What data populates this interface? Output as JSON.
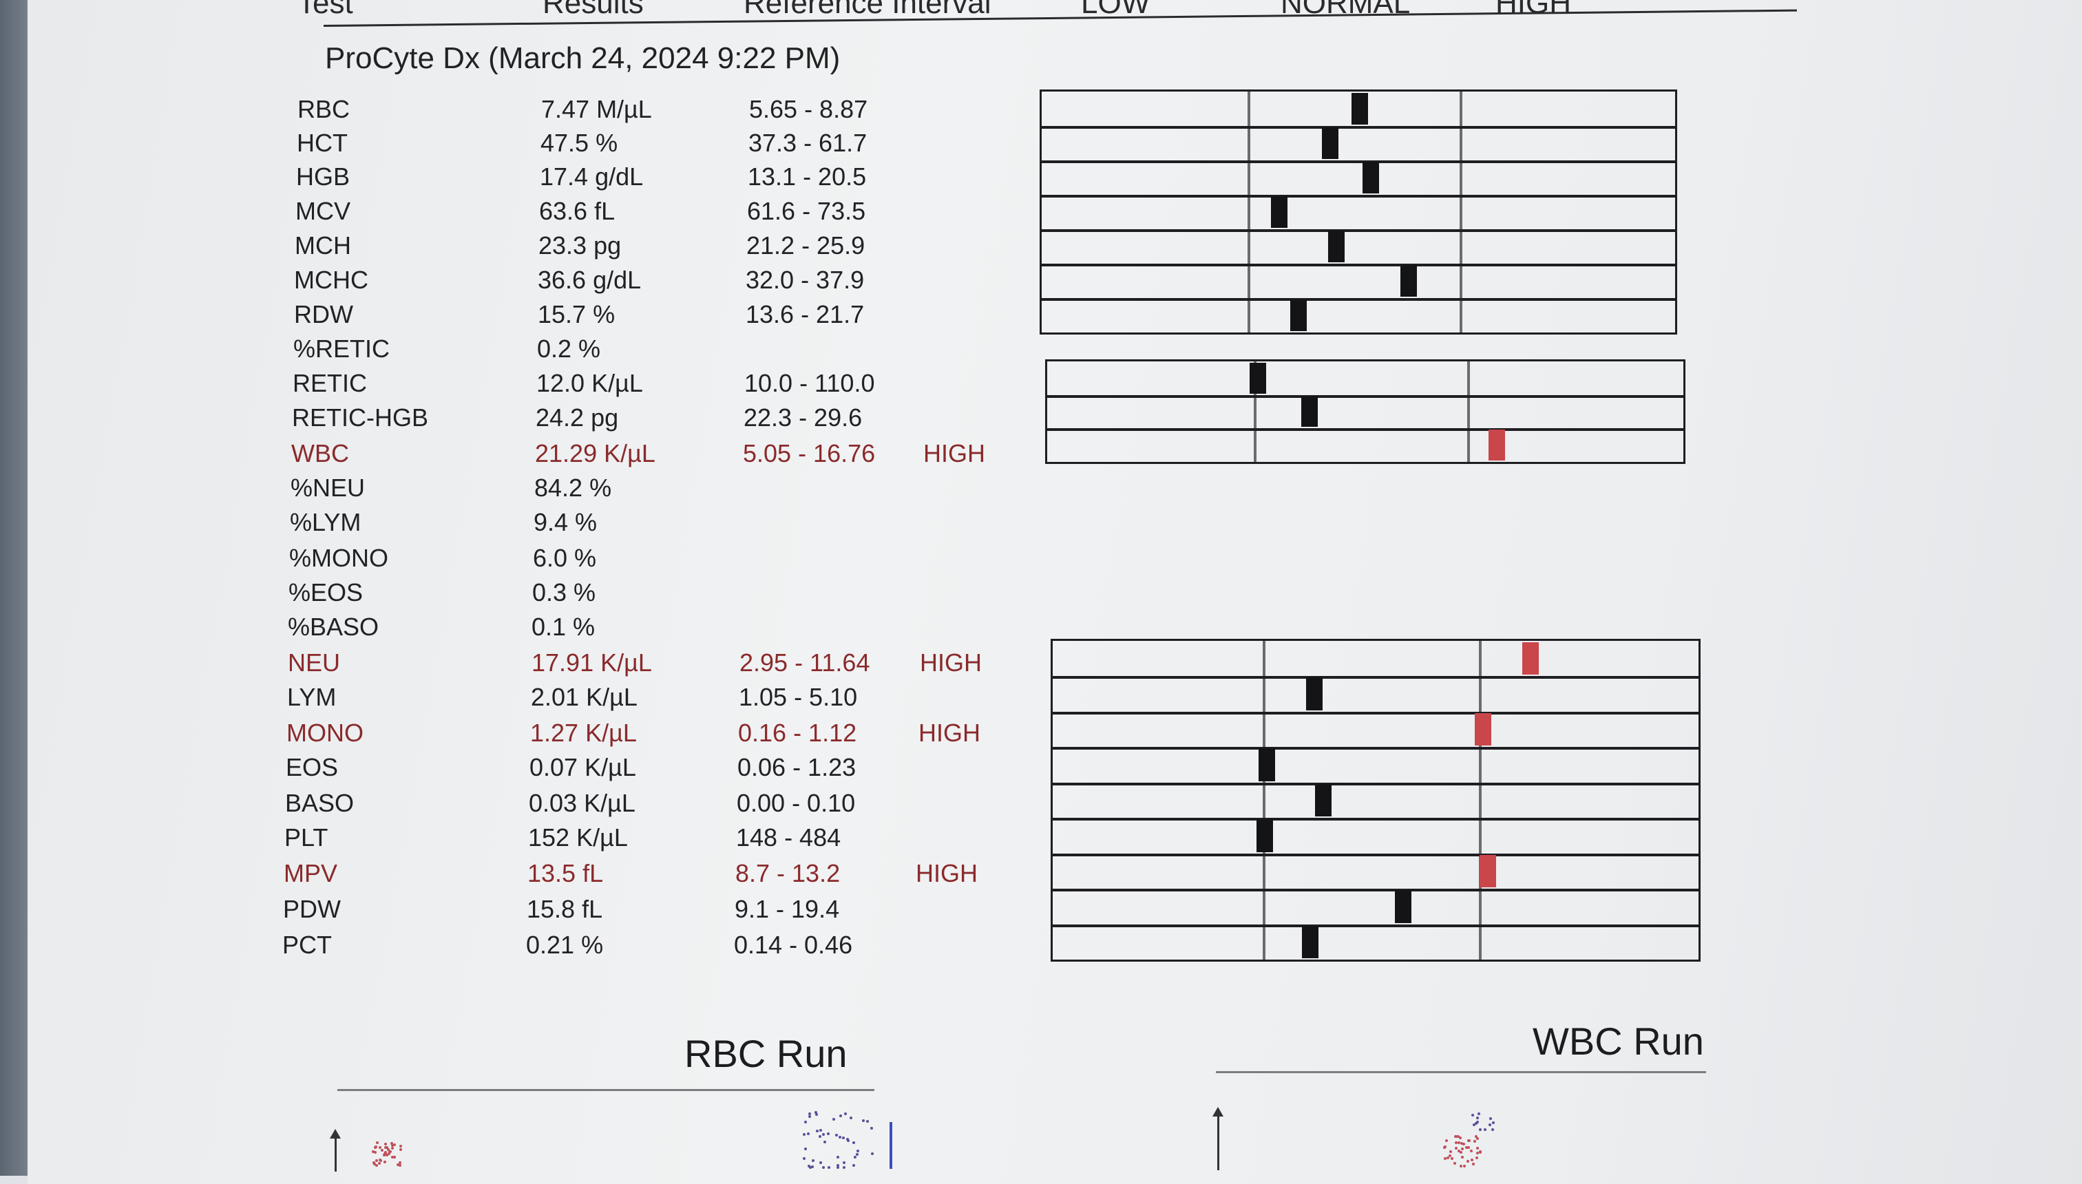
{
  "header": {
    "test": "Test",
    "results": "Results",
    "reference": "Reference Interval",
    "low": "LOW",
    "normal": "NORMAL",
    "high": "HIGH"
  },
  "report_title": "ProCyte Dx (March 24, 2024 9:22 PM)",
  "rows": [
    {
      "test": "RBC",
      "result": "7.47 M/µL",
      "ref": "5.65 - 8.87",
      "flag": "",
      "level": 0.53
    },
    {
      "test": "HCT",
      "result": "47.5 %",
      "ref": "37.3 - 61.7",
      "flag": "",
      "level": 0.39
    },
    {
      "test": "HGB",
      "result": "17.4 g/dL",
      "ref": "13.1 - 20.5",
      "flag": "",
      "level": 0.58
    },
    {
      "test": "MCV",
      "result": "63.6 fL",
      "ref": "61.6 - 73.5",
      "flag": "",
      "level": 0.15
    },
    {
      "test": "MCH",
      "result": "23.3 pg",
      "ref": "21.2 - 25.9",
      "flag": "",
      "level": 0.42
    },
    {
      "test": "MCHC",
      "result": "36.6 g/dL",
      "ref": "32.0 - 37.9",
      "flag": "",
      "level": 0.76
    },
    {
      "test": "RDW",
      "result": "15.7 %",
      "ref": "13.6 - 21.7",
      "flag": "",
      "level": 0.24
    },
    {
      "test": "%RETIC",
      "result": "0.2 %",
      "ref": "",
      "flag": ""
    },
    {
      "test": "RETIC",
      "result": "12.0 K/µL",
      "ref": "10.0 - 110.0",
      "flag": "",
      "level": 0.02
    },
    {
      "test": "RETIC-HGB",
      "result": "24.2 pg",
      "ref": "22.3 - 29.6",
      "flag": "",
      "level": 0.26
    },
    {
      "test": "WBC",
      "result": "21.29 K/µL",
      "ref": "5.05 - 16.76",
      "flag": "HIGH",
      "level": 1.14
    },
    {
      "test": "%NEU",
      "result": "84.2 %",
      "ref": "",
      "flag": ""
    },
    {
      "test": "%LYM",
      "result": "9.4 %",
      "ref": "",
      "flag": ""
    },
    {
      "test": "%MONO",
      "result": "6.0 %",
      "ref": "",
      "flag": ""
    },
    {
      "test": "%EOS",
      "result": "0.3 %",
      "ref": "",
      "flag": ""
    },
    {
      "test": "%BASO",
      "result": "0.1 %",
      "ref": "",
      "flag": ""
    },
    {
      "test": "NEU",
      "result": "17.91 K/µL",
      "ref": "2.95 - 11.64",
      "flag": "HIGH",
      "level": 1.24
    },
    {
      "test": "LYM",
      "result": "2.01 K/µL",
      "ref": "1.05 - 5.10",
      "flag": "",
      "level": 0.24
    },
    {
      "test": "MONO",
      "result": "1.27 K/µL",
      "ref": "0.16 - 1.12",
      "flag": "HIGH",
      "level": 1.02
    },
    {
      "test": "EOS",
      "result": "0.07 K/µL",
      "ref": "0.06 - 1.23",
      "flag": "",
      "level": 0.02
    },
    {
      "test": "BASO",
      "result": "0.03 K/µL",
      "ref": "0.00 - 0.10",
      "flag": "",
      "level": 0.28
    },
    {
      "test": "PLT",
      "result": "152 K/µL",
      "ref": "148 - 484",
      "flag": "",
      "level": 0.01
    },
    {
      "test": "MPV",
      "result": "13.5 fL",
      "ref": "8.7 - 13.2",
      "flag": "HIGH",
      "level": 1.04
    },
    {
      "test": "PDW",
      "result": "15.8 fL",
      "ref": "9.1 - 19.4",
      "flag": "",
      "level": 0.65
    },
    {
      "test": "PCT",
      "result": "0.21 %",
      "ref": "0.14 - 0.46",
      "flag": "",
      "level": 0.22
    }
  ],
  "runs": {
    "rbc": "RBC Run",
    "wbc": "WBC Run"
  },
  "colors": {
    "paper": "#eceef0",
    "ink": "#1f1f22",
    "high_text": "#8a2a2c",
    "high_marker": "#c9464b",
    "normal_marker": "#141416"
  }
}
